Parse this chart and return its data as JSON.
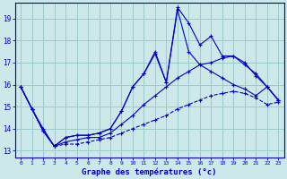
{
  "title": "Graphe des températures (°c)",
  "background_color": "#cce8e8",
  "grid_color": "#99cccc",
  "line_color": "#0000cc",
  "xlim": [
    -0.5,
    23.5
  ],
  "ylim": [
    12.7,
    19.7
  ],
  "yticks": [
    13,
    14,
    15,
    16,
    17,
    18,
    19
  ],
  "xticks": [
    0,
    1,
    2,
    3,
    4,
    5,
    6,
    7,
    8,
    9,
    10,
    11,
    12,
    13,
    14,
    15,
    16,
    17,
    18,
    19,
    20,
    21,
    22,
    23
  ],
  "series1": [
    15.9,
    14.9,
    13.9,
    13.2,
    13.6,
    13.7,
    13.7,
    13.8,
    14.0,
    14.8,
    15.9,
    16.5,
    17.5,
    16.1,
    19.5,
    18.8,
    17.8,
    18.2,
    17.3,
    17.3,
    16.9,
    16.5,
    15.9,
    15.3
  ],
  "series2": [
    15.9,
    14.9,
    13.9,
    13.2,
    13.4,
    13.5,
    13.6,
    13.6,
    13.8,
    14.2,
    14.6,
    15.1,
    15.5,
    15.9,
    16.3,
    16.6,
    16.9,
    17.0,
    17.2,
    17.3,
    17.0,
    16.4,
    15.9,
    15.3
  ],
  "series3": [
    15.9,
    14.9,
    13.9,
    13.2,
    13.3,
    13.3,
    13.4,
    13.5,
    13.6,
    13.8,
    14.0,
    14.2,
    14.4,
    14.6,
    14.9,
    15.1,
    15.3,
    15.5,
    15.6,
    15.7,
    15.6,
    15.4,
    15.1,
    15.2
  ],
  "series4": [
    15.9,
    14.9,
    14.0,
    13.2,
    13.6,
    13.7,
    13.7,
    13.8,
    14.0,
    14.8,
    15.9,
    16.5,
    17.4,
    16.1,
    19.4,
    17.5,
    16.9,
    16.6,
    16.3,
    16.0,
    15.8,
    15.5,
    15.9,
    15.3
  ]
}
